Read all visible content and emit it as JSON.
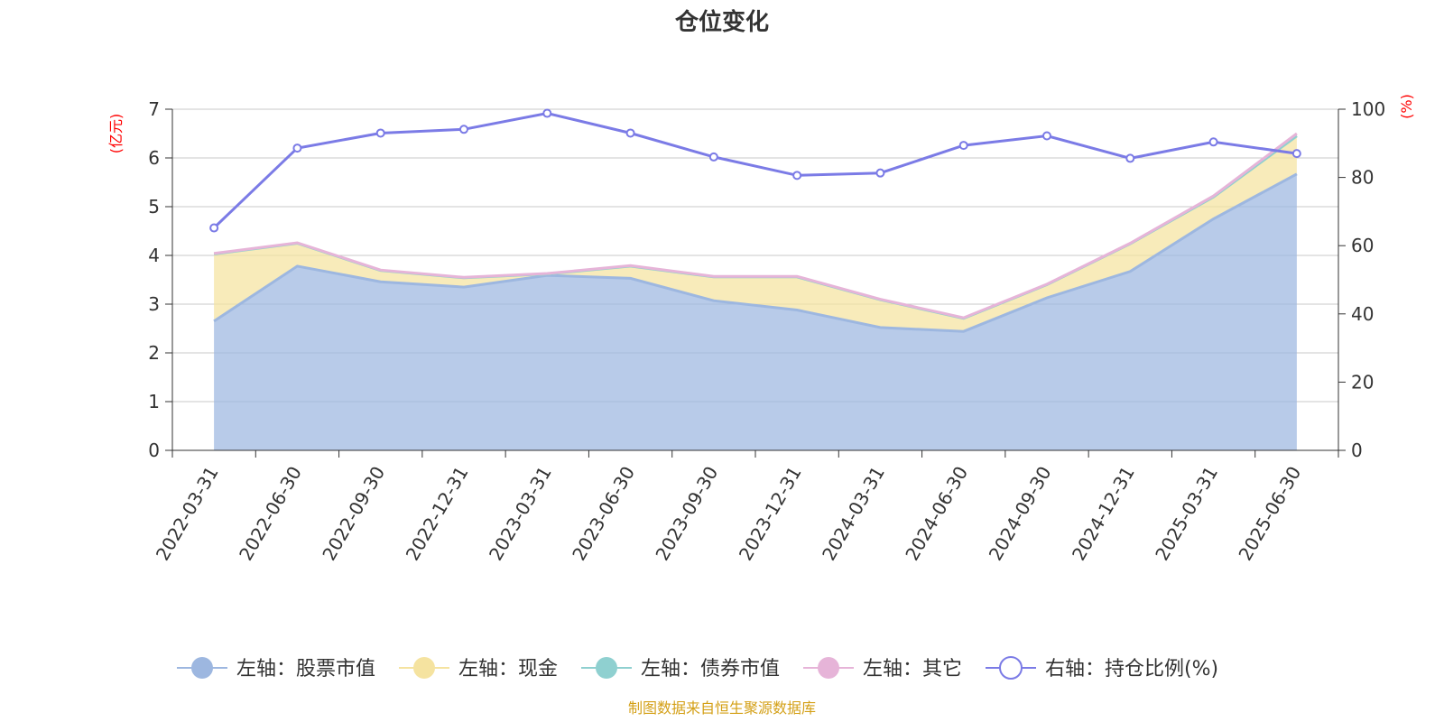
{
  "chart_data": {
    "type": "area",
    "title": "仓位变化",
    "left_axis_unit": "(亿元)",
    "right_axis_unit": "(%)",
    "categories": [
      "2022-03-31",
      "2022-06-30",
      "2022-09-30",
      "2022-12-31",
      "2023-03-31",
      "2023-06-30",
      "2023-09-30",
      "2023-12-31",
      "2024-03-31",
      "2024-06-30",
      "2024-09-30",
      "2024-12-31",
      "2025-03-31",
      "2025-06-30"
    ],
    "left_ylim": [
      0,
      7
    ],
    "left_yticks": [
      0,
      1,
      2,
      3,
      4,
      5,
      6,
      7
    ],
    "right_ylim": [
      0,
      100
    ],
    "right_yticks": [
      0,
      20,
      40,
      60,
      80,
      100
    ],
    "grid": true,
    "legend_position": "bottom",
    "series": [
      {
        "name": "左轴：股票市值",
        "axis": "left",
        "kind": "stacked-area",
        "color": "#9db7e0",
        "values": [
          2.65,
          3.78,
          3.46,
          3.35,
          3.59,
          3.53,
          3.07,
          2.88,
          2.52,
          2.44,
          3.13,
          3.67,
          4.75,
          5.67
        ]
      },
      {
        "name": "左轴：现金",
        "axis": "left",
        "kind": "stacked-area",
        "color": "#f5e3a0",
        "values": [
          1.38,
          0.47,
          0.23,
          0.19,
          0.03,
          0.25,
          0.49,
          0.68,
          0.57,
          0.27,
          0.27,
          0.57,
          0.45,
          0.78
        ]
      },
      {
        "name": "左轴：债券市值",
        "axis": "left",
        "kind": "stacked-area",
        "color": "#8fd0d0",
        "values": [
          0,
          0,
          0,
          0,
          0,
          0,
          0,
          0,
          0,
          0,
          0,
          0,
          0,
          0
        ]
      },
      {
        "name": "左轴：其它",
        "axis": "left",
        "kind": "stacked-area",
        "color": "#e6b4d8",
        "values": [
          0.01,
          0.01,
          0.01,
          0.01,
          0.01,
          0.01,
          0.01,
          0.01,
          0.01,
          0.01,
          0.01,
          0.01,
          0.02,
          0.05
        ]
      },
      {
        "name": "右轴：持仓比例(%)",
        "axis": "right",
        "kind": "line",
        "color": "#7b7be6",
        "values": [
          65.2,
          88.6,
          93.0,
          94.1,
          98.8,
          93.0,
          86.0,
          80.6,
          81.3,
          89.4,
          92.2,
          85.6,
          90.4,
          87.0
        ]
      }
    ]
  },
  "footer": {
    "source": "制图数据来自恒生聚源数据库"
  }
}
